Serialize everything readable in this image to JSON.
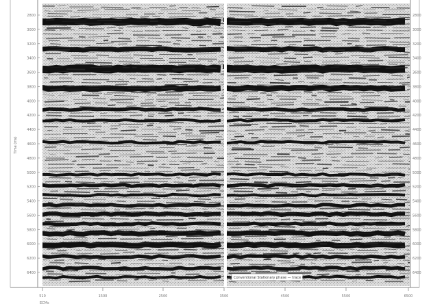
{
  "figure": {
    "y_axis_title": "Time (ms)",
    "y_ticks": [
      "2800",
      "3000",
      "3200",
      "3400",
      "3600",
      "3800",
      "4000",
      "4200",
      "4400",
      "4600",
      "4800",
      "5000",
      "5200",
      "5400",
      "5600",
      "5800",
      "6000",
      "6200",
      "6400"
    ],
    "x_ticks": [
      "510",
      "1500",
      "2500",
      "3500",
      "4500",
      "5500",
      "6500"
    ],
    "x_axis_caption": "ECMs",
    "panel_annotation": "Conventional Stationary phase — trace 6",
    "colors": {
      "background": "#ffffff",
      "panel": "#d9d9d9",
      "reflector": "#111111",
      "divider": "#ffffff",
      "axis": "#888888"
    }
  }
}
